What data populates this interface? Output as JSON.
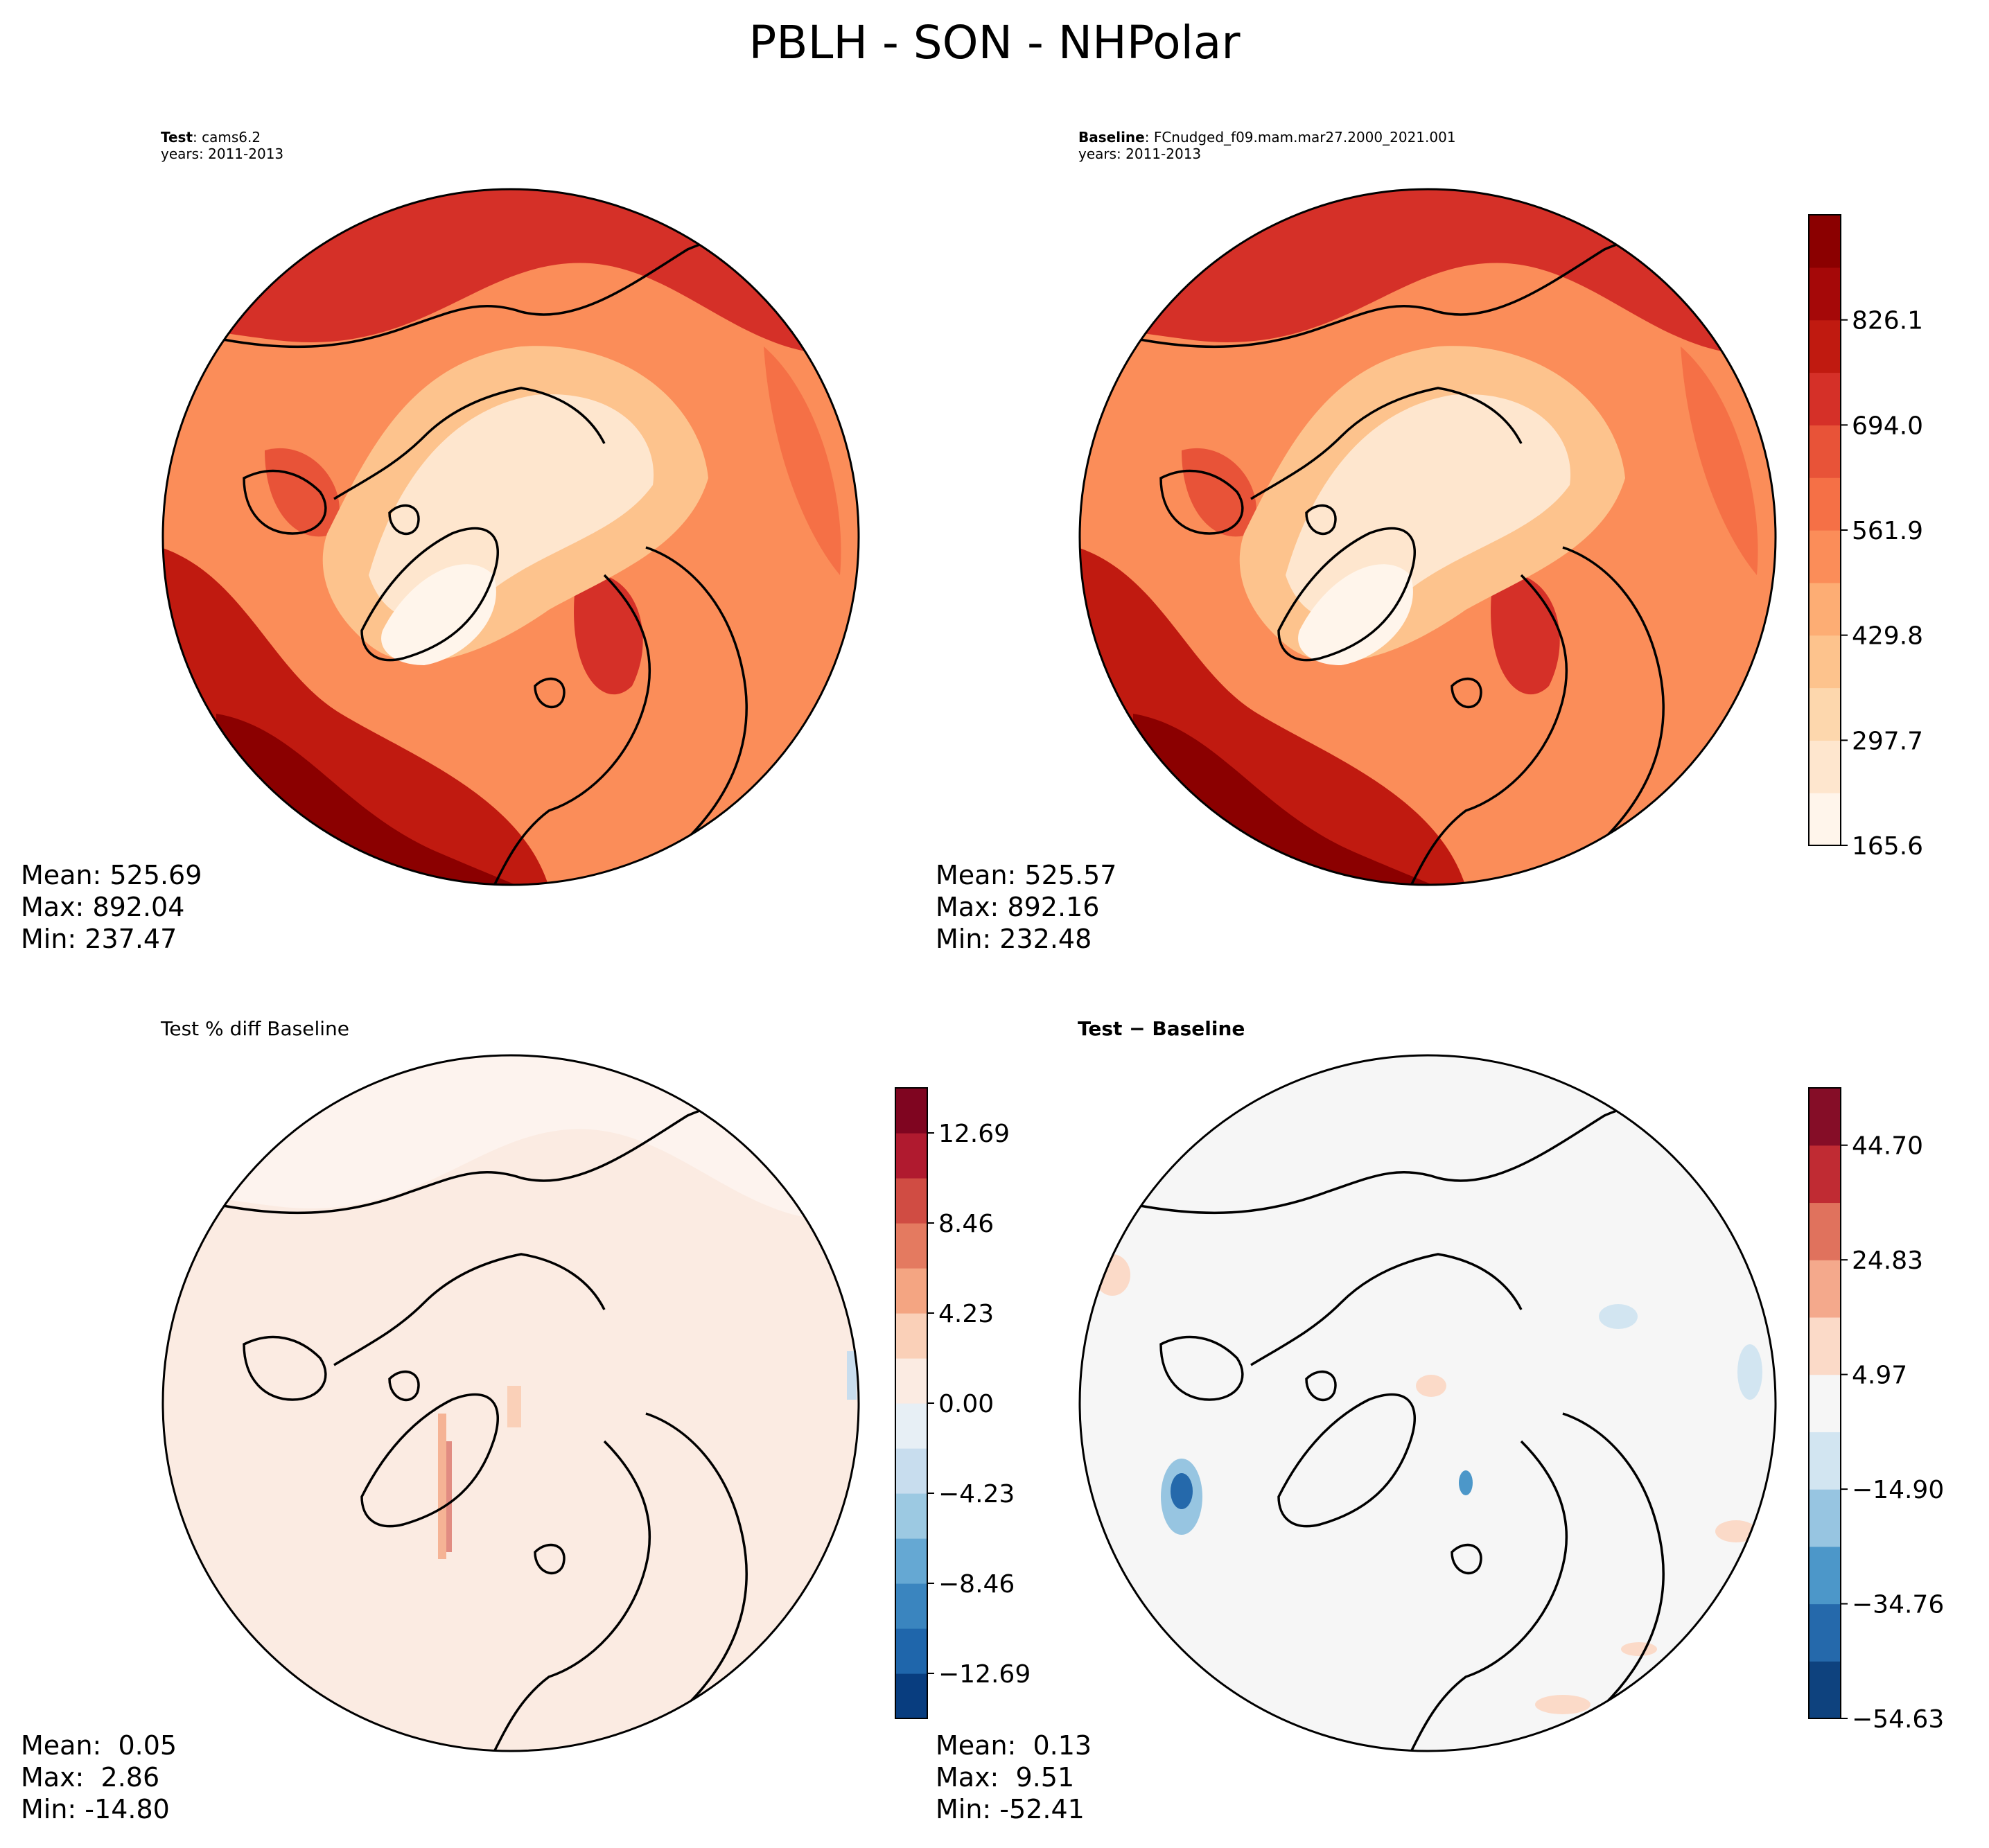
{
  "title": "PBLH - SON - NHPolar",
  "panels": {
    "test": {
      "label_bold": "Test",
      "label_rest": ": cams6.2",
      "years": "years: 2011-2013",
      "stats": {
        "mean": "Mean: 525.69",
        "max": "Max: 892.04",
        "min": "Min: 237.47"
      }
    },
    "baseline": {
      "label_bold": "Baseline",
      "label_rest": ": FCnudged_f09.mam.mar27.2000_2021.001",
      "years": "years: 2011-2013",
      "stats": {
        "mean": "Mean: 525.57",
        "max": "Max: 892.16",
        "min": "Min: 232.48"
      }
    },
    "pctdiff": {
      "label": "Test % diff Baseline",
      "stats": {
        "mean": "Mean:  0.05",
        "max": "Max:  2.86",
        "min": "Min: -14.80"
      }
    },
    "diff": {
      "label": "Test − Baseline",
      "stats": {
        "mean": "Mean:  0.13",
        "max": "Max:  9.51",
        "min": "Min: -52.41"
      }
    }
  },
  "colorbars": {
    "main": {
      "colormap": "OrRd-like",
      "colors": [
        "#fff5eb",
        "#fee6ce",
        "#fdd7ad",
        "#fdc38d",
        "#fdad74",
        "#fb8d59",
        "#f57046",
        "#e85338",
        "#d53028",
        "#c01a10",
        "#a50808",
        "#8b0000"
      ],
      "ticks": [
        "165.6",
        "297.7",
        "429.8",
        "561.9",
        "694.0",
        "826.1"
      ]
    },
    "pctdiff": {
      "colormap": "RdBu_r",
      "colors": [
        "#083d7f",
        "#1f66ab",
        "#3a85bf",
        "#65a8d3",
        "#9cc9e2",
        "#c8ddee",
        "#e7eff5",
        "#fbebe2",
        "#fad0b8",
        "#f4a582",
        "#e47a60",
        "#d04c43",
        "#b01a2f",
        "#7f0520"
      ],
      "ticks": [
        "−12.69",
        "−8.46",
        "−4.23",
        "0.00",
        "4.23",
        "8.46",
        "12.69"
      ]
    },
    "diff": {
      "colormap": "RdBu_r",
      "colors": [
        "#0e427e",
        "#2569ab",
        "#4c97c9",
        "#97c5e1",
        "#d2e5f1",
        "#f6f6f6",
        "#fbdac8",
        "#f4a98c",
        "#e0725d",
        "#c02b33",
        "#850d27"
      ],
      "ticks": [
        "−54.63",
        "−34.76",
        "−14.90",
        "4.97",
        "24.83",
        "44.70"
      ]
    }
  }
}
